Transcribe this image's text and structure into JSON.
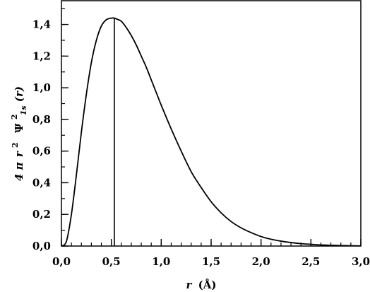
{
  "chart_data": {
    "type": "line",
    "title": "",
    "xlabel": "r (Å)",
    "ylabel": "4πr² ψ²₁ₛ(r)",
    "ylabel_parts": {
      "prefix": "4",
      "pi": "π",
      "r": "r",
      "exp2": "2",
      "psi": "Ψ",
      "psi_exp": "2",
      "sub": "1s",
      "arg": "(r)"
    },
    "xlabel_parts": {
      "var": "r",
      "unit": "(Å)"
    },
    "xlim": [
      0,
      3.0
    ],
    "ylim": [
      0,
      1.55
    ],
    "x_ticks": [
      {
        "value": 0.0,
        "label": "0,0"
      },
      {
        "value": 0.5,
        "label": "0,5"
      },
      {
        "value": 1.0,
        "label": "1,0"
      },
      {
        "value": 1.5,
        "label": "1,5"
      },
      {
        "value": 2.0,
        "label": "2,0"
      },
      {
        "value": 2.5,
        "label": "2,5"
      },
      {
        "value": 3.0,
        "label": "3,0"
      }
    ],
    "y_ticks": [
      {
        "value": 0.0,
        "label": "0,0"
      },
      {
        "value": 0.2,
        "label": "0,2"
      },
      {
        "value": 0.4,
        "label": "0,4"
      },
      {
        "value": 0.6,
        "label": "0,6"
      },
      {
        "value": 0.8,
        "label": "0,8"
      },
      {
        "value": 1.0,
        "label": "1,0"
      },
      {
        "value": 1.2,
        "label": "1,2"
      },
      {
        "value": 1.4,
        "label": "1,4"
      }
    ],
    "x_minor_step": 0.1,
    "y_minor_step": 0.1,
    "grid": false,
    "series": [
      {
        "x": [
          0.0,
          0.05,
          0.1,
          0.15,
          0.2,
          0.25,
          0.3,
          0.35,
          0.4,
          0.45,
          0.5,
          0.53,
          0.55,
          0.6,
          0.65,
          0.7,
          0.75,
          0.8,
          0.85,
          0.9,
          0.95,
          1.0,
          1.1,
          1.2,
          1.3,
          1.4,
          1.5,
          1.6,
          1.7,
          1.8,
          1.9,
          2.0,
          2.1,
          2.2,
          2.3,
          2.4,
          2.5,
          2.6,
          2.7,
          2.8,
          2.9,
          3.0
        ],
        "y": [
          0.0,
          0.03,
          0.2,
          0.45,
          0.72,
          0.96,
          1.16,
          1.3,
          1.39,
          1.43,
          1.44,
          1.44,
          1.435,
          1.42,
          1.38,
          1.33,
          1.27,
          1.2,
          1.13,
          1.05,
          0.97,
          0.89,
          0.74,
          0.6,
          0.47,
          0.37,
          0.28,
          0.21,
          0.155,
          0.115,
          0.085,
          0.06,
          0.043,
          0.031,
          0.022,
          0.015,
          0.011,
          0.007,
          0.005,
          0.003,
          0.002,
          0.001
        ],
        "color": "#000000"
      }
    ],
    "annotations": [
      {
        "type": "vertical-line",
        "x": 0.53,
        "y_from": 0,
        "y_to": 1.44
      }
    ]
  }
}
